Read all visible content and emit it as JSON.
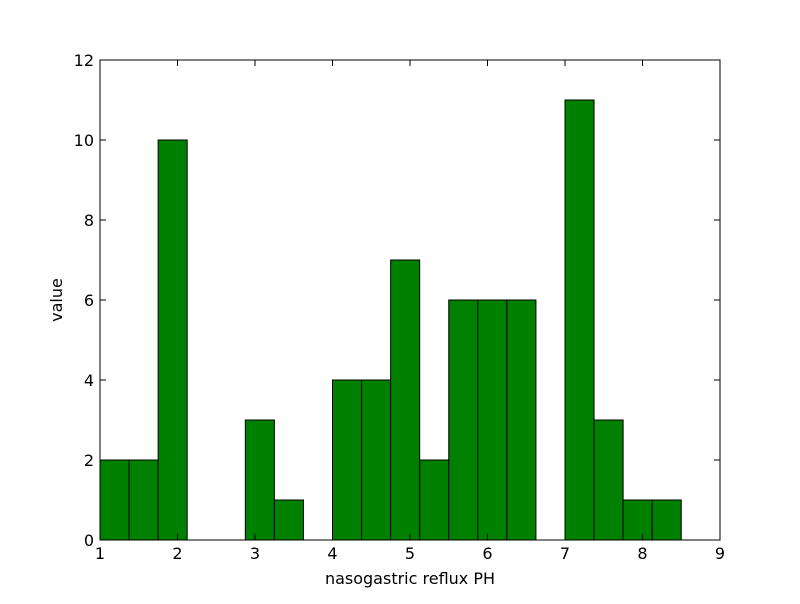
{
  "chart_data": {
    "type": "bar",
    "title": "",
    "xlabel": "nasogastric reflux PH",
    "ylabel": "value",
    "xlim": [
      1,
      9
    ],
    "ylim": [
      0,
      12
    ],
    "xticks": [
      1,
      2,
      3,
      4,
      5,
      6,
      7,
      8,
      9
    ],
    "yticks": [
      0,
      2,
      4,
      6,
      8,
      10,
      12
    ],
    "bar_color": "#008000",
    "edge_color": "#000000",
    "grid": false,
    "bins": [
      {
        "x0": 1.0,
        "x1": 1.375,
        "value": 2
      },
      {
        "x0": 1.375,
        "x1": 1.75,
        "value": 2
      },
      {
        "x0": 1.75,
        "x1": 2.125,
        "value": 10
      },
      {
        "x0": 2.125,
        "x1": 2.5,
        "value": 0
      },
      {
        "x0": 2.5,
        "x1": 2.875,
        "value": 0
      },
      {
        "x0": 2.875,
        "x1": 3.25,
        "value": 3
      },
      {
        "x0": 3.25,
        "x1": 3.625,
        "value": 1
      },
      {
        "x0": 3.625,
        "x1": 4.0,
        "value": 0
      },
      {
        "x0": 4.0,
        "x1": 4.375,
        "value": 4
      },
      {
        "x0": 4.375,
        "x1": 4.75,
        "value": 4
      },
      {
        "x0": 4.75,
        "x1": 5.125,
        "value": 7
      },
      {
        "x0": 5.125,
        "x1": 5.5,
        "value": 2
      },
      {
        "x0": 5.5,
        "x1": 5.875,
        "value": 6
      },
      {
        "x0": 5.875,
        "x1": 6.25,
        "value": 6
      },
      {
        "x0": 6.25,
        "x1": 6.625,
        "value": 6
      },
      {
        "x0": 6.625,
        "x1": 7.0,
        "value": 0
      },
      {
        "x0": 7.0,
        "x1": 7.375,
        "value": 11
      },
      {
        "x0": 7.375,
        "x1": 7.75,
        "value": 3
      },
      {
        "x0": 7.75,
        "x1": 8.125,
        "value": 1
      },
      {
        "x0": 8.125,
        "x1": 8.5,
        "value": 1
      }
    ]
  }
}
